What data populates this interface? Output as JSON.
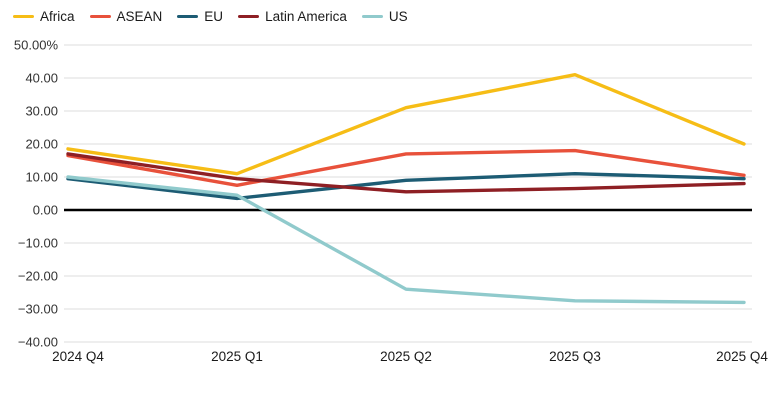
{
  "chart_data": {
    "type": "line",
    "title": "",
    "xlabel": "",
    "ylabel": "",
    "categories": [
      "2024 Q4",
      "2025 Q1",
      "2025 Q2",
      "2025 Q3",
      "2025 Q4"
    ],
    "series": [
      {
        "name": "Africa",
        "color": "#F6BD16",
        "values": [
          18.5,
          11,
          31,
          41,
          20
        ]
      },
      {
        "name": "ASEAN",
        "color": "#E8513B",
        "values": [
          16.5,
          7.5,
          17,
          18,
          10.5
        ]
      },
      {
        "name": "EU",
        "color": "#1D5C74",
        "values": [
          9.5,
          3.5,
          9,
          11,
          9.5
        ]
      },
      {
        "name": "Latin America",
        "color": "#8E1F24",
        "values": [
          17,
          9.5,
          5.5,
          6.5,
          8
        ]
      },
      {
        "name": "US",
        "color": "#90CACC",
        "values": [
          10,
          4.5,
          -24,
          -27.5,
          -28
        ]
      }
    ],
    "ylim": [
      -40,
      50
    ],
    "ytick_step": 10,
    "ytick_labels": [
      "50.00%",
      "40.00",
      "30.00",
      "20.00",
      "10.00",
      "0.00",
      "−10.00",
      "−20.00",
      "−30.00",
      "−40.00"
    ],
    "ytick_values": [
      50,
      40,
      30,
      20,
      10,
      0,
      -10,
      -20,
      -30,
      -40
    ],
    "grid": true,
    "grid_color": "#DDDDDD",
    "zero_line_color": "#000000",
    "text_color": "#333333",
    "legend_position": "top-left",
    "background_color": "#FFFFFF"
  }
}
